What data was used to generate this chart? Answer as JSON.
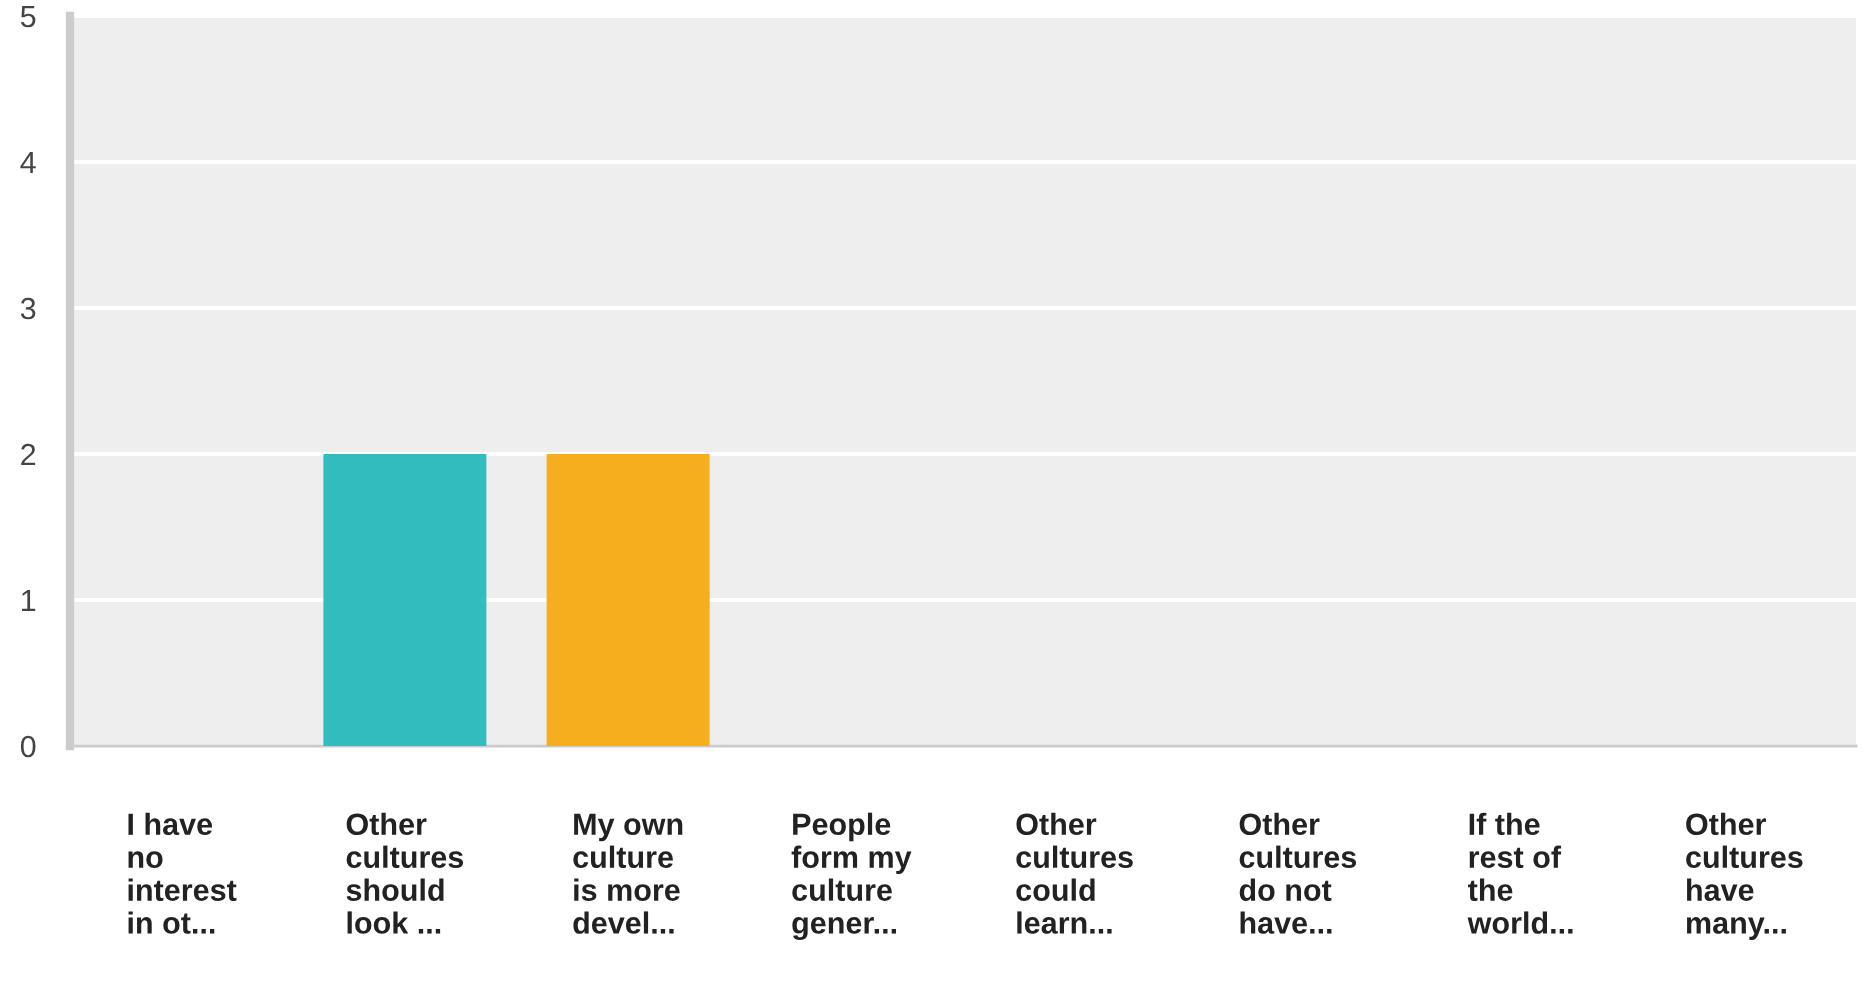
{
  "chart_data": {
    "type": "bar",
    "categories": [
      "I have\nno\ninterest\nin ot...",
      "Other\ncultures\nshould\nlook ...",
      "My own\nculture\nis more\ndevel...",
      "People\nform my\nculture\ngener...",
      "Other\ncultures\ncould\nlearn...",
      "Other\ncultures\ndo not\nhave...",
      "If the\nrest of\nthe\nworld...",
      "Other\ncultures\nhave\nmany..."
    ],
    "values": [
      0,
      2,
      2,
      0,
      0,
      0,
      0,
      0
    ],
    "colors": [
      "none",
      "#32bcbe",
      "#f6ae1f",
      "none",
      "none",
      "none",
      "none",
      "none"
    ],
    "ylim": [
      0,
      5
    ],
    "yticks": [
      0,
      1,
      2,
      3,
      4,
      5
    ],
    "grid": "y",
    "legend": false
  }
}
